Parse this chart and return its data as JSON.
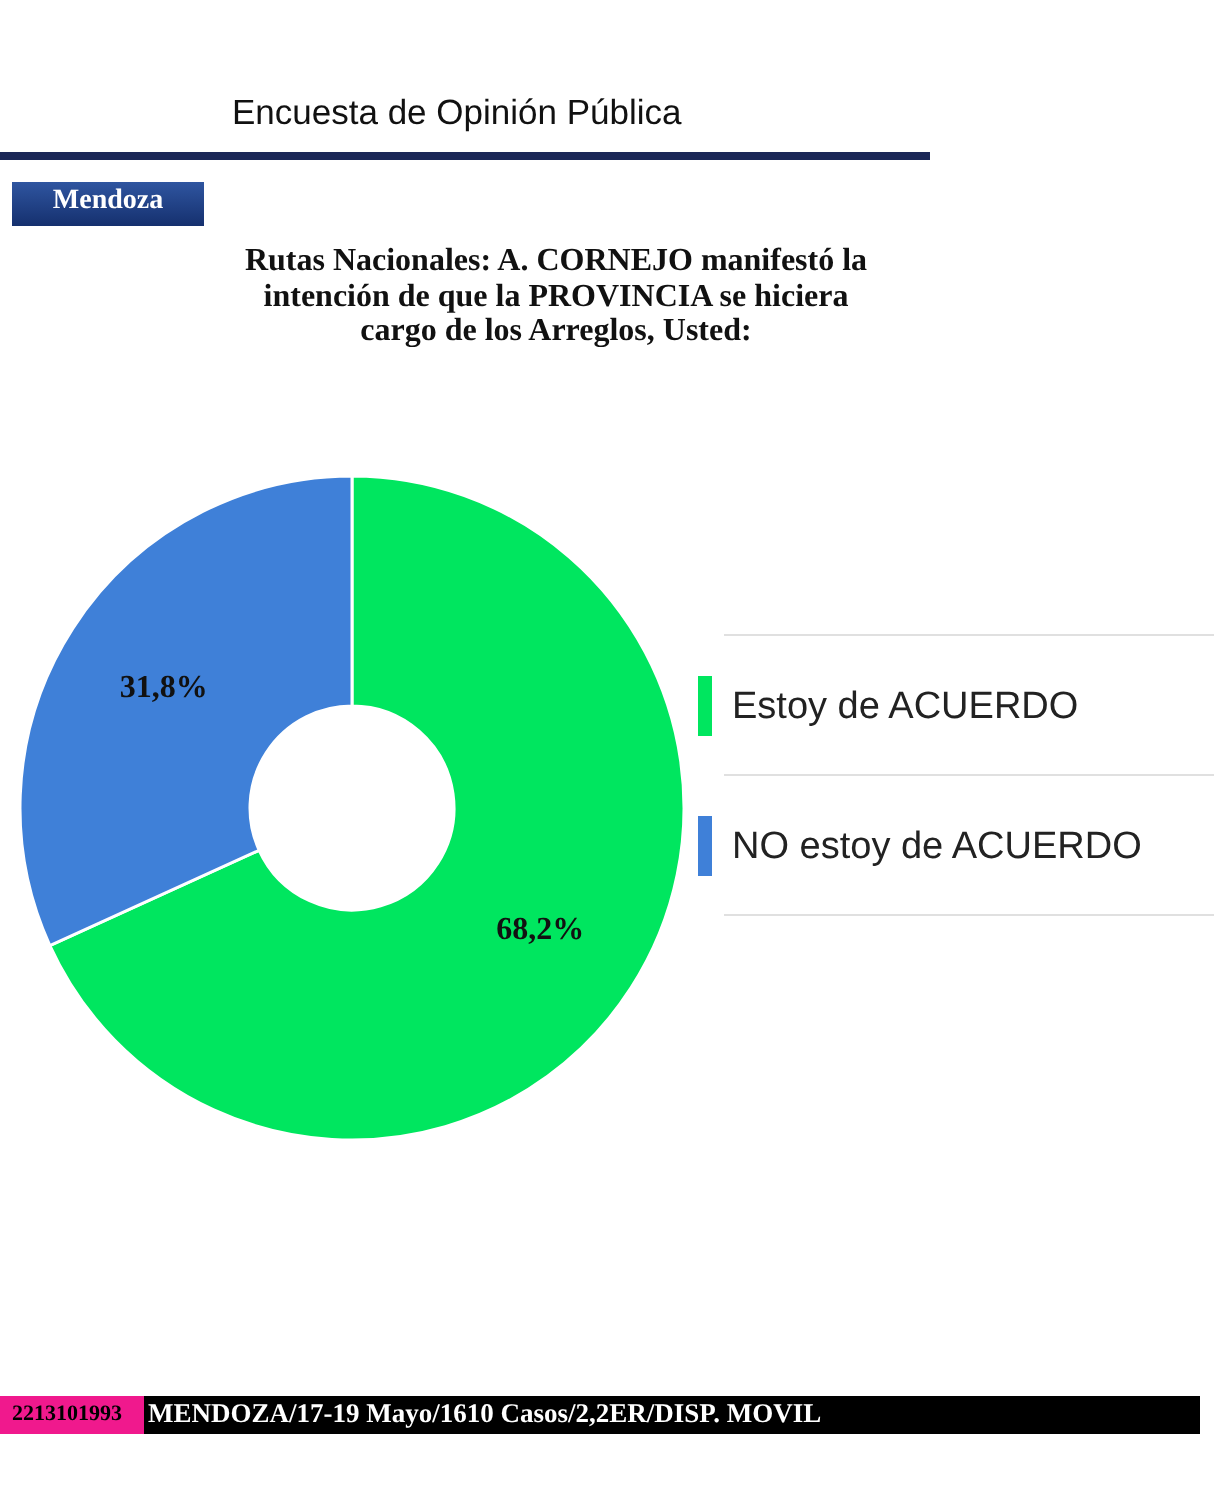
{
  "chart_data": {
    "type": "donut",
    "title": "Rutas Nacionales: A. CORNEJO manifestó la intención de que la PROVINCIA se hiciera cargo de los Arreglos, Usted:",
    "categories": [
      "Estoy de ACUERDO",
      "NO estoy de ACUERDO"
    ],
    "values": [
      68.2,
      31.8
    ],
    "value_labels": [
      "68,2%",
      "31,8%"
    ],
    "colors": [
      "#00e65f",
      "#3f80d8"
    ],
    "legend": "right",
    "annotations": [
      "Encuesta de Opinión Pública",
      "Mendoza",
      "2213101993",
      "MENDOZA/17-19 Mayo/1610 Casos/2,2ER/DISP. MOVIL"
    ]
  }
}
